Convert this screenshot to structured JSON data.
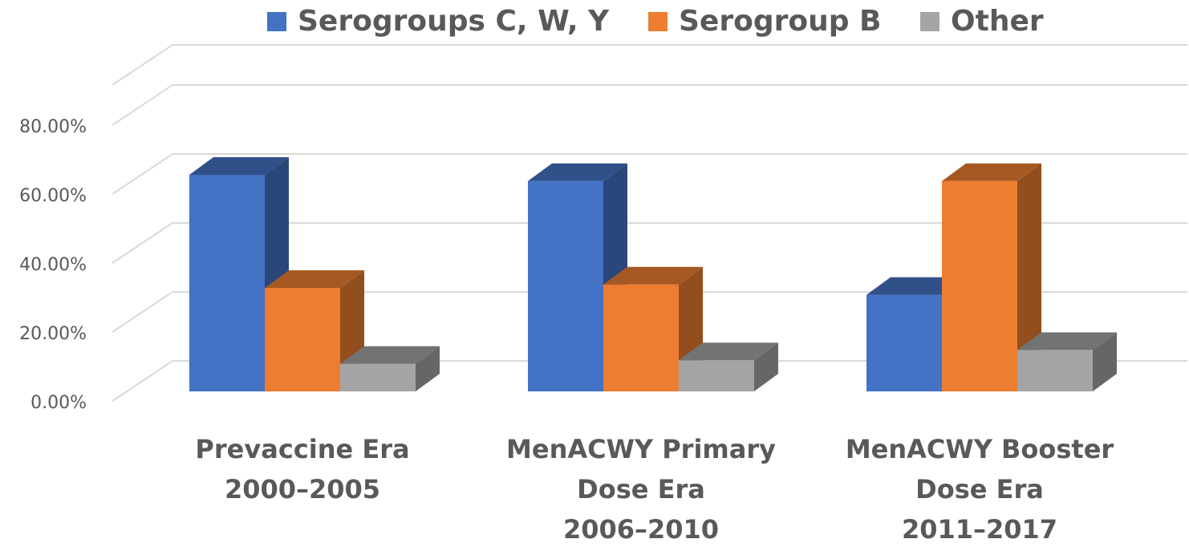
{
  "chart_data": {
    "type": "bar3d",
    "categories": [
      "Prevaccine Era\n2000–2005",
      "MenACWY Primary\nDose Era\n2006–2010",
      "MenACWY Booster\nDose Era\n2011–2017"
    ],
    "series": [
      {
        "name": "Serogroups C, W, Y",
        "color": "#4472c4",
        "values": [
          62.8,
          61,
          28
        ]
      },
      {
        "name": "Serogroup B",
        "color": "#ed7d31",
        "values": [
          30,
          31,
          61
        ]
      },
      {
        "name": "Other",
        "color": "#a5a5a5",
        "values": [
          8,
          9,
          12
        ]
      }
    ],
    "ylim": [
      0,
      80
    ],
    "yticks": [
      {
        "value": 0,
        "label": "0.00%"
      },
      {
        "value": 20,
        "label": "20.00%"
      },
      {
        "value": 40,
        "label": "40.00%"
      },
      {
        "value": 60,
        "label": "60.00%"
      },
      {
        "value": 80,
        "label": "80.00%"
      }
    ],
    "grid": true,
    "legend": "top"
  }
}
